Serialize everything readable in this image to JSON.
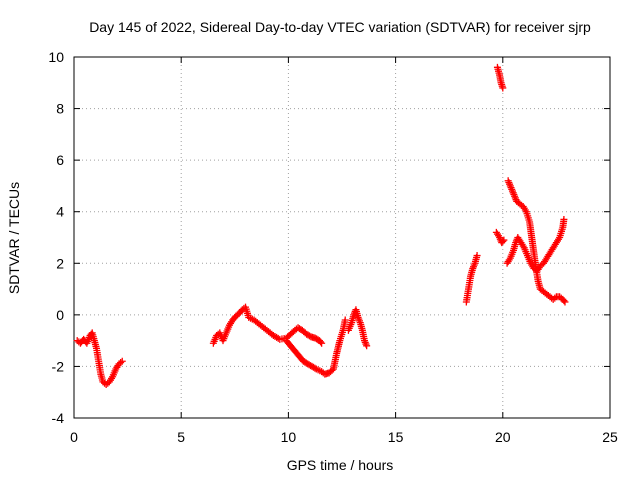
{
  "chart_data": {
    "type": "scatter",
    "title": "Day 145 of 2022, Sidereal Day-to-day VTEC variation (SDTVAR) for receiver sjrp",
    "xlabel": "GPS time / hours",
    "ylabel": "SDTVAR / TECUs",
    "xlim": [
      0,
      25
    ],
    "ylim": [
      -4,
      10
    ],
    "xticks": [
      0,
      5,
      10,
      15,
      20,
      25
    ],
    "yticks": [
      -4,
      -2,
      0,
      2,
      4,
      6,
      8,
      10
    ],
    "grid": true,
    "marker": "+",
    "color": "#ff0000",
    "series": [
      {
        "name": "sjrp",
        "segments": [
          [
            [
              0.15,
              -1.0
            ],
            [
              0.3,
              -1.1
            ],
            [
              0.45,
              -0.95
            ],
            [
              0.6,
              -1.1
            ],
            [
              0.75,
              -0.8
            ],
            [
              0.85,
              -0.7
            ],
            [
              0.95,
              -1.0
            ],
            [
              1.05,
              -1.3
            ],
            [
              1.15,
              -1.8
            ],
            [
              1.25,
              -2.3
            ],
            [
              1.35,
              -2.6
            ],
            [
              1.5,
              -2.7
            ],
            [
              1.65,
              -2.6
            ],
            [
              1.8,
              -2.4
            ],
            [
              1.95,
              -2.1
            ],
            [
              2.1,
              -1.9
            ],
            [
              2.25,
              -1.8
            ]
          ],
          [
            [
              6.5,
              -1.1
            ],
            [
              6.65,
              -0.8
            ],
            [
              6.8,
              -0.7
            ],
            [
              6.95,
              -1.0
            ],
            [
              7.1,
              -0.7
            ],
            [
              7.25,
              -0.4
            ],
            [
              7.4,
              -0.2
            ],
            [
              7.55,
              -0.05
            ],
            [
              7.7,
              0.05
            ],
            [
              7.85,
              0.2
            ],
            [
              8.0,
              0.3
            ],
            [
              8.15,
              -0.1
            ],
            [
              8.4,
              -0.2
            ],
            [
              8.7,
              -0.4
            ],
            [
              9.0,
              -0.6
            ],
            [
              9.3,
              -0.8
            ],
            [
              9.6,
              -0.95
            ],
            [
              9.9,
              -0.9
            ],
            [
              10.1,
              -0.75
            ],
            [
              10.3,
              -0.6
            ],
            [
              10.45,
              -0.5
            ],
            [
              10.65,
              -0.6
            ],
            [
              10.85,
              -0.75
            ],
            [
              11.05,
              -0.85
            ],
            [
              11.25,
              -0.9
            ],
            [
              11.45,
              -1.0
            ],
            [
              11.55,
              -1.1
            ]
          ],
          [
            [
              9.9,
              -1.0
            ],
            [
              10.1,
              -1.2
            ],
            [
              10.3,
              -1.4
            ],
            [
              10.5,
              -1.6
            ],
            [
              10.7,
              -1.8
            ],
            [
              10.9,
              -1.9
            ],
            [
              11.1,
              -2.0
            ],
            [
              11.3,
              -2.1
            ],
            [
              11.55,
              -2.2
            ],
            [
              11.7,
              -2.3
            ],
            [
              11.9,
              -2.25
            ],
            [
              12.1,
              -2.1
            ],
            [
              12.25,
              -1.5
            ],
            [
              12.4,
              -1.0
            ],
            [
              12.55,
              -0.6
            ],
            [
              12.65,
              -0.2
            ]
          ],
          [
            [
              12.8,
              -0.6
            ],
            [
              12.95,
              -0.3
            ],
            [
              13.05,
              0.0
            ],
            [
              13.15,
              0.2
            ],
            [
              13.25,
              -0.1
            ],
            [
              13.35,
              -0.3
            ],
            [
              13.45,
              -0.6
            ],
            [
              13.55,
              -1.0
            ],
            [
              13.65,
              -1.2
            ]
          ],
          [
            [
              18.3,
              0.5
            ],
            [
              18.4,
              1.0
            ],
            [
              18.5,
              1.5
            ],
            [
              18.6,
              1.8
            ],
            [
              18.7,
              2.0
            ],
            [
              18.8,
              2.3
            ]
          ],
          [
            [
              19.75,
              9.6
            ],
            [
              19.85,
              9.3
            ],
            [
              19.92,
              9.0
            ],
            [
              20.0,
              8.8
            ]
          ],
          [
            [
              19.7,
              3.2
            ],
            [
              19.85,
              3.0
            ],
            [
              19.95,
              2.8
            ],
            [
              20.05,
              2.9
            ]
          ],
          [
            [
              20.2,
              2.0
            ],
            [
              20.35,
              2.2
            ],
            [
              20.5,
              2.5
            ],
            [
              20.6,
              2.8
            ],
            [
              20.7,
              3.0
            ],
            [
              20.85,
              2.8
            ],
            [
              21.0,
              2.6
            ],
            [
              21.15,
              2.3
            ],
            [
              21.3,
              2.0
            ],
            [
              21.45,
              1.8
            ],
            [
              21.6,
              1.7
            ],
            [
              21.75,
              1.9
            ],
            [
              21.9,
              2.0
            ],
            [
              22.05,
              2.2
            ],
            [
              22.2,
              2.4
            ],
            [
              22.35,
              2.6
            ],
            [
              22.5,
              2.8
            ],
            [
              22.65,
              3.0
            ],
            [
              22.8,
              3.4
            ],
            [
              22.85,
              3.7
            ]
          ],
          [
            [
              20.25,
              5.2
            ],
            [
              20.35,
              5.0
            ],
            [
              20.45,
              4.8
            ],
            [
              20.55,
              4.6
            ],
            [
              20.65,
              4.4
            ],
            [
              20.8,
              4.3
            ],
            [
              20.95,
              4.2
            ],
            [
              21.1,
              4.0
            ],
            [
              21.25,
              3.6
            ],
            [
              21.35,
              3.0
            ],
            [
              21.45,
              2.4
            ],
            [
              21.55,
              1.8
            ],
            [
              21.65,
              1.3
            ],
            [
              21.75,
              1.0
            ],
            [
              21.9,
              0.9
            ],
            [
              22.05,
              0.8
            ],
            [
              22.2,
              0.7
            ],
            [
              22.35,
              0.6
            ],
            [
              22.5,
              0.7
            ],
            [
              22.65,
              0.7
            ],
            [
              22.8,
              0.6
            ],
            [
              22.9,
              0.5
            ]
          ]
        ]
      }
    ]
  }
}
